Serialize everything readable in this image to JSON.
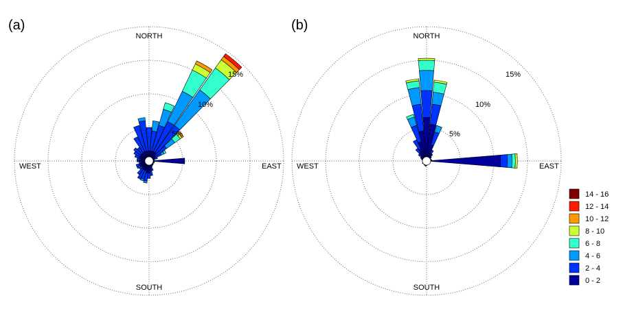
{
  "chart_data": [
    {
      "type": "wind-rose",
      "panel_label": "(a)",
      "direction_labels": {
        "north": "NORTH",
        "south": "SOUTH",
        "east": "EAST",
        "west": "WEST"
      },
      "ring_labels": [
        "5%",
        "10%",
        "15%"
      ],
      "rings_percent": [
        5,
        10,
        15,
        20
      ],
      "bins": [
        {
          "dir": 0,
          "values": [
            1.5,
            3.5
          ]
        },
        {
          "dir": 10,
          "values": [
            1.5,
            3.0,
            1.5
          ]
        },
        {
          "dir": 20,
          "values": [
            1.5,
            4.0,
            2.5,
            1.0
          ]
        },
        {
          "dir": 30,
          "values": [
            1.5,
            5.0,
            5.0,
            3.5,
            1.0,
            0.5
          ]
        },
        {
          "dir": 40,
          "values": [
            1.5,
            5.0,
            6.5,
            4.0,
            1.5,
            0.6,
            0.5
          ]
        },
        {
          "dir": 50,
          "values": [
            1.2,
            2.0,
            1.5,
            1.0,
            0.3,
            0.3
          ]
        },
        {
          "dir": 60,
          "values": [
            1.0,
            1.0,
            0.5,
            0.3
          ]
        },
        {
          "dir": 70,
          "values": [
            0.8,
            0.5
          ]
        },
        {
          "dir": 80,
          "values": [
            0.8
          ]
        },
        {
          "dir": 90,
          "values": [
            5.3
          ]
        },
        {
          "dir": 100,
          "values": [
            0.8
          ]
        },
        {
          "dir": 110,
          "values": [
            0.8
          ]
        },
        {
          "dir": 120,
          "values": [
            0.7
          ]
        },
        {
          "dir": 130,
          "values": [
            0.8
          ]
        },
        {
          "dir": 140,
          "values": [
            0.8
          ]
        },
        {
          "dir": 150,
          "values": [
            0.9
          ]
        },
        {
          "dir": 160,
          "values": [
            1.0,
            0.5
          ]
        },
        {
          "dir": 170,
          "values": [
            1.5,
            0.7
          ]
        },
        {
          "dir": 180,
          "values": [
            1.8,
            0.8
          ]
        },
        {
          "dir": 190,
          "values": [
            1.8,
            1.2,
            0.3
          ]
        },
        {
          "dir": 200,
          "values": [
            1.5,
            1.3,
            0.3
          ]
        },
        {
          "dir": 210,
          "values": [
            1.5,
            1.5
          ]
        },
        {
          "dir": 220,
          "values": [
            1.5,
            1.0
          ]
        },
        {
          "dir": 230,
          "values": [
            1.3,
            0.5
          ]
        },
        {
          "dir": 240,
          "values": [
            1.5,
            0.5
          ]
        },
        {
          "dir": 250,
          "values": [
            1.5,
            0.5
          ]
        },
        {
          "dir": 260,
          "values": [
            1.2,
            0.3
          ]
        },
        {
          "dir": 270,
          "values": [
            1.5,
            0.3
          ]
        },
        {
          "dir": 280,
          "values": [
            1.3,
            0.5
          ]
        },
        {
          "dir": 290,
          "values": [
            1.5,
            0.7
          ]
        },
        {
          "dir": 300,
          "values": [
            1.5,
            1.0
          ]
        },
        {
          "dir": 310,
          "values": [
            1.5,
            1.3
          ]
        },
        {
          "dir": 320,
          "values": [
            1.5,
            1.0
          ]
        },
        {
          "dir": 330,
          "values": [
            1.5,
            2.5
          ]
        },
        {
          "dir": 340,
          "values": [
            1.5,
            4.0
          ]
        },
        {
          "dir": 350,
          "values": [
            1.5,
            4.5,
            0.5
          ]
        }
      ]
    },
    {
      "type": "wind-rose",
      "panel_label": "(b)",
      "direction_labels": {
        "north": "NORTH",
        "south": "SOUTH",
        "east": "EAST",
        "west": "WEST"
      },
      "ring_labels": [
        "5%",
        "10%",
        "15%"
      ],
      "rings_percent": [
        5,
        10,
        15,
        20
      ],
      "bins": [
        {
          "dir": 0,
          "values": [
            6.5,
            4.0,
            3.0,
            1.5,
            0.3
          ]
        },
        {
          "dir": 10,
          "values": [
            5.5,
            3.0,
            1.8,
            1.5,
            0.3
          ]
        },
        {
          "dir": 20,
          "values": [
            2.5,
            2.0,
            1.0
          ]
        },
        {
          "dir": 30,
          "values": [
            1.3,
            0.5
          ]
        },
        {
          "dir": 40,
          "values": [
            1.0,
            0.3
          ]
        },
        {
          "dir": 50,
          "values": [
            0.9
          ]
        },
        {
          "dir": 60,
          "values": [
            0.7
          ]
        },
        {
          "dir": 70,
          "values": [
            0.7
          ]
        },
        {
          "dir": 80,
          "values": [
            0.8
          ]
        },
        {
          "dir": 90,
          "values": [
            11.0,
            1.0,
            0.7,
            0.5,
            0.3
          ]
        },
        {
          "dir": 100,
          "values": [
            0.6
          ]
        },
        {
          "dir": 110,
          "values": [
            0.6
          ]
        },
        {
          "dir": 120,
          "values": [
            0.5
          ]
        },
        {
          "dir": 130,
          "values": [
            0.6
          ]
        },
        {
          "dir": 140,
          "values": [
            0.6
          ]
        },
        {
          "dir": 150,
          "values": [
            0.5
          ]
        },
        {
          "dir": 160,
          "values": [
            0.6
          ]
        },
        {
          "dir": 170,
          "values": [
            0.6
          ]
        },
        {
          "dir": 180,
          "values": [
            0.7
          ]
        },
        {
          "dir": 190,
          "values": [
            0.8
          ]
        },
        {
          "dir": 200,
          "values": [
            0.7
          ]
        },
        {
          "dir": 210,
          "values": [
            0.7
          ]
        },
        {
          "dir": 220,
          "values": [
            0.6
          ]
        },
        {
          "dir": 230,
          "values": [
            0.6
          ]
        },
        {
          "dir": 240,
          "values": [
            0.7
          ]
        },
        {
          "dir": 250,
          "values": [
            0.6
          ]
        },
        {
          "dir": 260,
          "values": [
            0.6
          ]
        },
        {
          "dir": 270,
          "values": [
            0.6
          ]
        },
        {
          "dir": 280,
          "values": [
            0.6
          ]
        },
        {
          "dir": 290,
          "values": [
            0.8
          ]
        },
        {
          "dir": 300,
          "values": [
            1.0
          ]
        },
        {
          "dir": 310,
          "values": [
            1.0,
            0.5
          ]
        },
        {
          "dir": 320,
          "values": [
            1.5,
            0.8
          ]
        },
        {
          "dir": 330,
          "values": [
            2.0,
            1.5
          ]
        },
        {
          "dir": 340,
          "values": [
            3.0,
            2.5,
            1.3,
            0.4
          ]
        },
        {
          "dir": 350,
          "values": [
            4.5,
            4.0,
            2.5,
            1.0,
            0.3
          ]
        }
      ]
    }
  ],
  "legend": {
    "entries": [
      {
        "label": "14 - 16",
        "color": "#800000"
      },
      {
        "label": "12 - 14",
        "color": "#ff1a00"
      },
      {
        "label": "10 - 12",
        "color": "#ff9900"
      },
      {
        "label": "8 - 10",
        "color": "#ccff33"
      },
      {
        "label": "6 - 8",
        "color": "#33ffcc"
      },
      {
        "label": "4 - 6",
        "color": "#0099ff"
      },
      {
        "label": "2 - 4",
        "color": "#0033ff"
      },
      {
        "label": "0 - 2",
        "color": "#000099"
      }
    ]
  }
}
